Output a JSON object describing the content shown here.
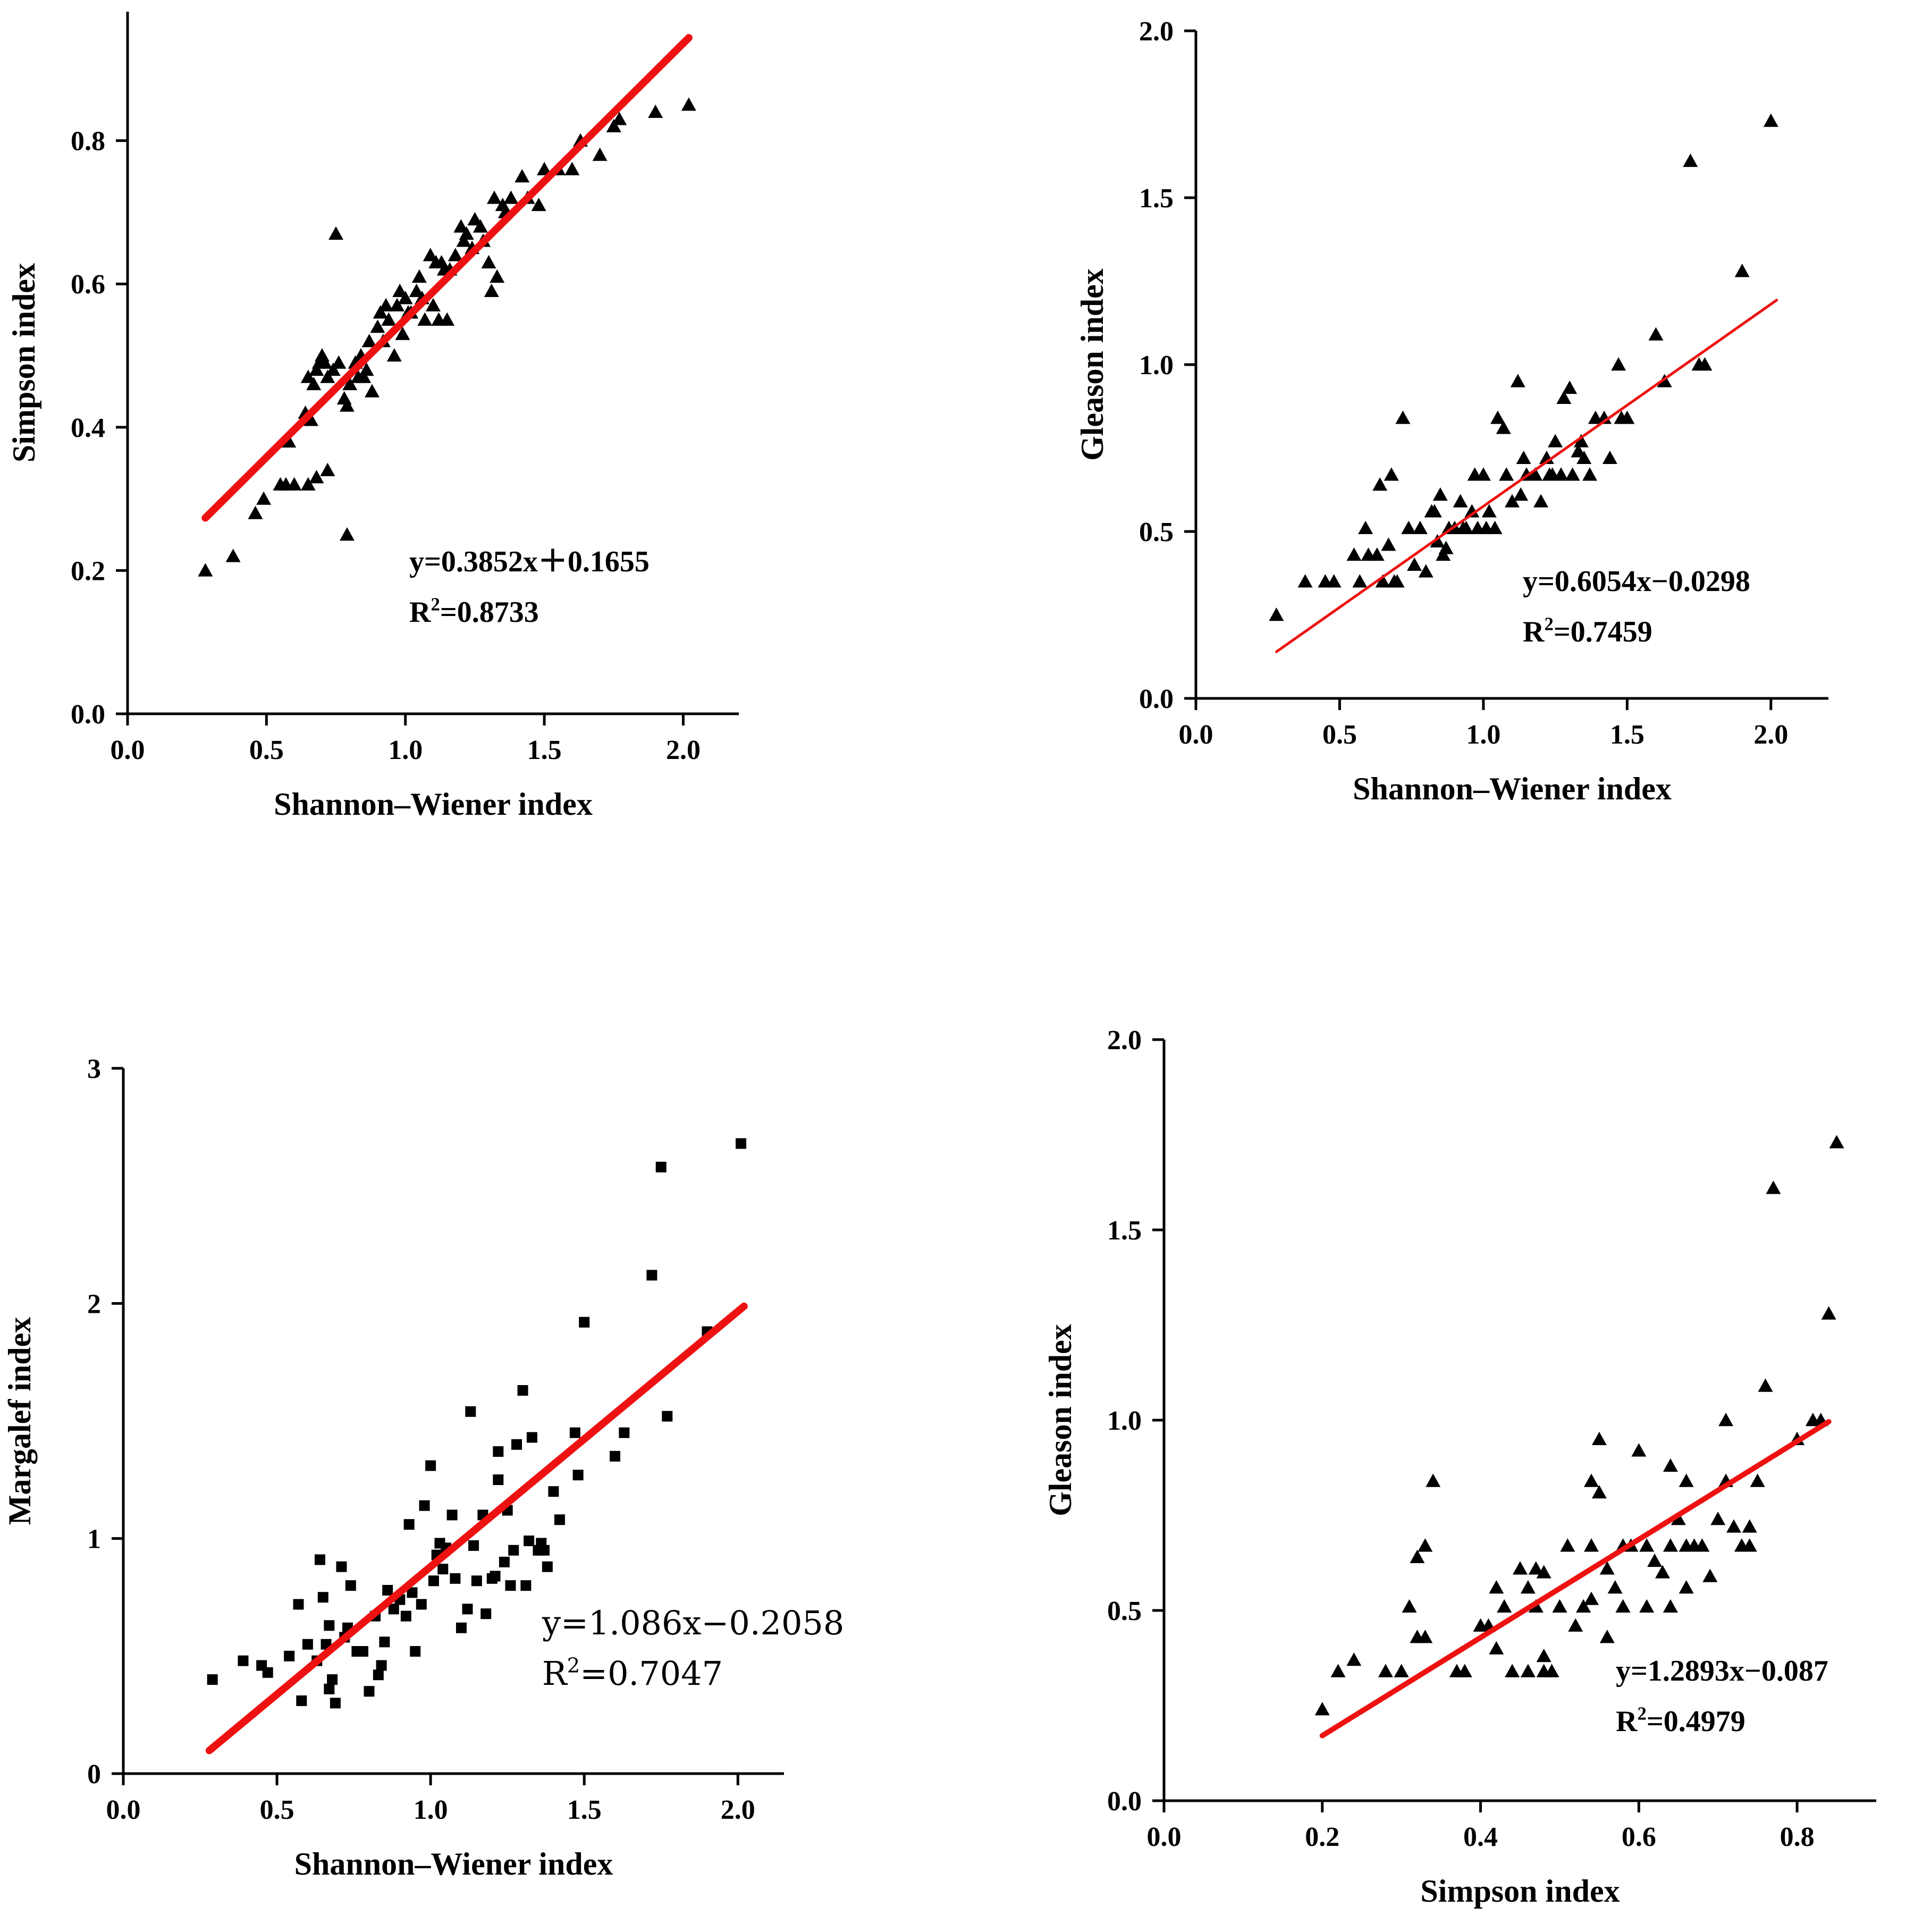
{
  "chart_data": [
    {
      "type": "scatter",
      "title": "",
      "xlabel": "Shannon–Wiener index",
      "ylabel": "Simpson index",
      "xlim": [
        0,
        2.2
      ],
      "ylim": [
        0,
        0.98
      ],
      "xticks": [
        "0.0",
        "0.5",
        "1.0",
        "1.5",
        "2.0"
      ],
      "yticks": [
        "0.0",
        "0.2",
        "0.4",
        "0.6",
        "0.8"
      ],
      "marker": "triangle",
      "fit": {
        "slope": 0.3852,
        "intercept": 0.1655,
        "x_range": [
          0.28,
          2.02
        ]
      },
      "equation": "y=0.3852x＋0.1655",
      "r2_label": "R",
      "r2_sup": "2",
      "r2_value": "=0.8733",
      "points": [
        [
          0.28,
          0.2
        ],
        [
          0.38,
          0.22
        ],
        [
          0.46,
          0.28
        ],
        [
          0.49,
          0.3
        ],
        [
          0.55,
          0.32
        ],
        [
          0.57,
          0.32
        ],
        [
          0.58,
          0.38
        ],
        [
          0.6,
          0.32
        ],
        [
          0.65,
          0.32
        ],
        [
          0.68,
          0.33
        ],
        [
          0.72,
          0.34
        ],
        [
          0.65,
          0.47
        ],
        [
          0.67,
          0.46
        ],
        [
          0.68,
          0.48
        ],
        [
          0.69,
          0.49
        ],
        [
          0.7,
          0.5
        ],
        [
          0.72,
          0.47
        ],
        [
          0.74,
          0.48
        ],
        [
          0.75,
          0.67
        ],
        [
          0.76,
          0.49
        ],
        [
          0.78,
          0.44
        ],
        [
          0.79,
          0.43
        ],
        [
          0.8,
          0.46
        ],
        [
          0.82,
          0.49
        ],
        [
          0.84,
          0.5
        ],
        [
          0.85,
          0.47
        ],
        [
          0.86,
          0.48
        ],
        [
          0.88,
          0.45
        ],
        [
          0.9,
          0.54
        ],
        [
          0.91,
          0.56
        ],
        [
          0.92,
          0.52
        ],
        [
          0.94,
          0.55
        ],
        [
          0.96,
          0.5
        ],
        [
          0.97,
          0.57
        ],
        [
          0.99,
          0.53
        ],
        [
          1.0,
          0.58
        ],
        [
          1.01,
          0.56
        ],
        [
          1.02,
          0.56
        ],
        [
          1.04,
          0.59
        ],
        [
          1.05,
          0.61
        ],
        [
          1.07,
          0.55
        ],
        [
          1.09,
          0.64
        ],
        [
          1.1,
          0.57
        ],
        [
          1.12,
          0.55
        ],
        [
          1.13,
          0.63
        ],
        [
          1.14,
          0.62
        ],
        [
          1.15,
          0.55
        ],
        [
          1.16,
          0.62
        ],
        [
          1.18,
          0.64
        ],
        [
          1.2,
          0.68
        ],
        [
          1.22,
          0.67
        ],
        [
          1.24,
          0.65
        ],
        [
          1.25,
          0.69
        ],
        [
          1.27,
          0.68
        ],
        [
          1.3,
          0.63
        ],
        [
          1.31,
          0.59
        ],
        [
          1.32,
          0.72
        ],
        [
          1.33,
          0.61
        ],
        [
          1.36,
          0.7
        ],
        [
          1.38,
          0.72
        ],
        [
          1.42,
          0.75
        ],
        [
          1.44,
          0.72
        ],
        [
          1.48,
          0.71
        ],
        [
          1.5,
          0.76
        ],
        [
          1.55,
          0.76
        ],
        [
          1.6,
          0.76
        ],
        [
          1.63,
          0.8
        ],
        [
          1.7,
          0.78
        ],
        [
          1.75,
          0.82
        ],
        [
          1.77,
          0.83
        ],
        [
          1.9,
          0.84
        ],
        [
          2.02,
          0.85
        ],
        [
          0.64,
          0.42
        ],
        [
          0.66,
          0.41
        ],
        [
          0.71,
          0.49
        ],
        [
          0.83,
          0.47
        ],
        [
          0.87,
          0.52
        ],
        [
          0.93,
          0.57
        ],
        [
          0.98,
          0.59
        ],
        [
          1.06,
          0.58
        ],
        [
          1.11,
          0.63
        ],
        [
          1.21,
          0.66
        ],
        [
          1.28,
          0.66
        ],
        [
          1.35,
          0.71
        ],
        [
          0.79,
          0.25
        ]
      ]
    },
    {
      "type": "scatter",
      "title": "",
      "xlabel": "Shannon–Wiener index",
      "ylabel": "Gleason index",
      "xlim": [
        0,
        2.2
      ],
      "ylim": [
        0,
        2.0
      ],
      "xticks": [
        "0.0",
        "0.5",
        "1.0",
        "1.5",
        "2.0"
      ],
      "yticks": [
        "0.0",
        "0.5",
        "1.0",
        "1.5",
        "2.0"
      ],
      "marker": "triangle",
      "fit": {
        "slope": 0.6054,
        "intercept": -0.0298,
        "x_range": [
          0.28,
          2.02
        ]
      },
      "equation": "y=0.6054x−0.0298",
      "r2_label": "R",
      "r2_sup": "2",
      "r2_value": "=0.7459",
      "points": [
        [
          0.28,
          0.25
        ],
        [
          0.38,
          0.35
        ],
        [
          0.45,
          0.35
        ],
        [
          0.48,
          0.35
        ],
        [
          0.55,
          0.43
        ],
        [
          0.57,
          0.35
        ],
        [
          0.59,
          0.51
        ],
        [
          0.63,
          0.43
        ],
        [
          0.64,
          0.64
        ],
        [
          0.65,
          0.35
        ],
        [
          0.67,
          0.46
        ],
        [
          0.68,
          0.67
        ],
        [
          0.7,
          0.35
        ],
        [
          0.72,
          0.84
        ],
        [
          0.74,
          0.51
        ],
        [
          0.76,
          0.4
        ],
        [
          0.78,
          0.51
        ],
        [
          0.8,
          0.38
        ],
        [
          0.82,
          0.56
        ],
        [
          0.84,
          0.47
        ],
        [
          0.85,
          0.61
        ],
        [
          0.86,
          0.43
        ],
        [
          0.88,
          0.51
        ],
        [
          0.9,
          0.51
        ],
        [
          0.92,
          0.59
        ],
        [
          0.94,
          0.51
        ],
        [
          0.96,
          0.56
        ],
        [
          0.97,
          0.67
        ],
        [
          0.98,
          0.51
        ],
        [
          1.0,
          0.67
        ],
        [
          1.01,
          0.51
        ],
        [
          1.02,
          0.56
        ],
        [
          1.04,
          0.51
        ],
        [
          1.05,
          0.84
        ],
        [
          1.07,
          0.81
        ],
        [
          1.08,
          0.67
        ],
        [
          1.1,
          0.59
        ],
        [
          1.12,
          0.95
        ],
        [
          1.13,
          0.61
        ],
        [
          1.15,
          0.67
        ],
        [
          1.18,
          0.67
        ],
        [
          1.2,
          0.59
        ],
        [
          1.22,
          0.72
        ],
        [
          1.24,
          0.67
        ],
        [
          1.25,
          0.77
        ],
        [
          1.27,
          0.67
        ],
        [
          1.28,
          0.9
        ],
        [
          1.3,
          0.93
        ],
        [
          1.31,
          0.67
        ],
        [
          1.33,
          0.74
        ],
        [
          1.35,
          0.72
        ],
        [
          1.37,
          0.67
        ],
        [
          1.39,
          0.84
        ],
        [
          1.42,
          0.84
        ],
        [
          1.44,
          0.72
        ],
        [
          1.47,
          1.0
        ],
        [
          1.5,
          0.84
        ],
        [
          1.6,
          1.09
        ],
        [
          1.63,
          0.95
        ],
        [
          1.72,
          1.61
        ],
        [
          1.75,
          1.0
        ],
        [
          1.77,
          1.0
        ],
        [
          1.9,
          1.28
        ],
        [
          2.0,
          1.73
        ],
        [
          0.6,
          0.43
        ],
        [
          0.83,
          0.56
        ],
        [
          0.93,
          0.51
        ],
        [
          1.14,
          0.72
        ],
        [
          1.23,
          0.67
        ],
        [
          1.34,
          0.77
        ],
        [
          1.48,
          0.84
        ],
        [
          0.69,
          0.35
        ],
        [
          0.87,
          0.45
        ]
      ]
    },
    {
      "type": "scatter",
      "title": "",
      "xlabel": "Shannon–Wiener index",
      "ylabel": "Margalef index",
      "xlim": [
        0,
        2.15
      ],
      "ylim": [
        0,
        3
      ],
      "xticks": [
        "0.0",
        "0.5",
        "1.0",
        "1.5",
        "2.0"
      ],
      "yticks": [
        "0",
        "1",
        "2",
        "3"
      ],
      "marker": "square",
      "fit": {
        "slope": 1.086,
        "intercept": -0.2058,
        "x_range": [
          0.28,
          2.02
        ]
      },
      "equation": "y=1.086x−0.2058",
      "r2_label": "R",
      "r2_sup": "2",
      "r2_value": "=0.7047",
      "points": [
        [
          0.29,
          0.4
        ],
        [
          0.39,
          0.48
        ],
        [
          0.45,
          0.46
        ],
        [
          0.47,
          0.43
        ],
        [
          0.54,
          0.5
        ],
        [
          0.57,
          0.72
        ],
        [
          0.58,
          0.31
        ],
        [
          0.6,
          0.55
        ],
        [
          0.63,
          0.48
        ],
        [
          0.64,
          0.91
        ],
        [
          0.65,
          0.75
        ],
        [
          0.67,
          0.63
        ],
        [
          0.67,
          0.36
        ],
        [
          0.68,
          0.4
        ],
        [
          0.69,
          0.3
        ],
        [
          0.71,
          0.88
        ],
        [
          0.73,
          0.62
        ],
        [
          0.74,
          0.8
        ],
        [
          0.76,
          0.52
        ],
        [
          0.78,
          0.52
        ],
        [
          0.8,
          0.35
        ],
        [
          0.82,
          0.67
        ],
        [
          0.84,
          0.46
        ],
        [
          0.85,
          0.56
        ],
        [
          0.86,
          0.78
        ],
        [
          0.88,
          0.7
        ],
        [
          0.9,
          0.74
        ],
        [
          0.92,
          0.67
        ],
        [
          0.93,
          1.06
        ],
        [
          0.95,
          0.52
        ],
        [
          0.97,
          0.72
        ],
        [
          0.98,
          1.14
        ],
        [
          1.0,
          1.31
        ],
        [
          1.01,
          0.82
        ],
        [
          1.02,
          0.93
        ],
        [
          1.04,
          0.87
        ],
        [
          1.05,
          0.96
        ],
        [
          1.07,
          1.1
        ],
        [
          1.08,
          0.83
        ],
        [
          1.1,
          0.62
        ],
        [
          1.12,
          0.7
        ],
        [
          1.13,
          1.54
        ],
        [
          1.15,
          0.82
        ],
        [
          1.17,
          1.1
        ],
        [
          1.18,
          0.68
        ],
        [
          1.2,
          0.83
        ],
        [
          1.22,
          1.37
        ],
        [
          1.22,
          1.25
        ],
        [
          1.24,
          0.9
        ],
        [
          1.25,
          1.12
        ],
        [
          1.26,
          0.8
        ],
        [
          1.28,
          1.4
        ],
        [
          1.3,
          1.63
        ],
        [
          1.31,
          0.8
        ],
        [
          1.32,
          0.99
        ],
        [
          1.33,
          1.43
        ],
        [
          1.35,
          0.95
        ],
        [
          1.37,
          0.95
        ],
        [
          1.38,
          0.88
        ],
        [
          1.4,
          1.2
        ],
        [
          1.42,
          1.08
        ],
        [
          1.47,
          1.45
        ],
        [
          1.48,
          1.27
        ],
        [
          1.5,
          1.92
        ],
        [
          1.6,
          1.35
        ],
        [
          1.63,
          1.45
        ],
        [
          1.72,
          2.12
        ],
        [
          1.75,
          2.58
        ],
        [
          1.77,
          1.52
        ],
        [
          1.9,
          1.88
        ],
        [
          2.01,
          2.68
        ],
        [
          0.66,
          0.55
        ],
        [
          0.72,
          0.58
        ],
        [
          0.83,
          0.42
        ],
        [
          0.94,
          0.77
        ],
        [
          1.03,
          0.98
        ],
        [
          1.14,
          0.97
        ],
        [
          1.21,
          0.84
        ],
        [
          1.27,
          0.95
        ],
        [
          1.36,
          0.98
        ]
      ]
    },
    {
      "type": "scatter",
      "title": "",
      "xlabel": "Simpson index",
      "ylabel": "Gleason index",
      "xlim": [
        0,
        0.9
      ],
      "ylim": [
        0,
        2.0
      ],
      "xticks": [
        "0.0",
        "0.2",
        "0.4",
        "0.6",
        "0.8"
      ],
      "yticks": [
        "0.0",
        "0.5",
        "1.0",
        "1.5",
        "2.0"
      ],
      "marker": "triangle",
      "fit": {
        "slope": 1.2893,
        "intercept": -0.087,
        "x_range": [
          0.2,
          0.84
        ]
      },
      "equation": "y=1.2893x−0.087",
      "r2_label": "R",
      "r2_sup": "2",
      "r2_value": "=0.4979",
      "points": [
        [
          0.2,
          0.24
        ],
        [
          0.22,
          0.34
        ],
        [
          0.24,
          0.37
        ],
        [
          0.28,
          0.34
        ],
        [
          0.3,
          0.34
        ],
        [
          0.31,
          0.51
        ],
        [
          0.32,
          0.43
        ],
        [
          0.32,
          0.64
        ],
        [
          0.33,
          0.43
        ],
        [
          0.33,
          0.67
        ],
        [
          0.34,
          0.84
        ],
        [
          0.37,
          0.34
        ],
        [
          0.38,
          0.34
        ],
        [
          0.4,
          0.46
        ],
        [
          0.41,
          0.46
        ],
        [
          0.42,
          0.4
        ],
        [
          0.42,
          0.56
        ],
        [
          0.43,
          0.51
        ],
        [
          0.44,
          0.34
        ],
        [
          0.45,
          0.61
        ],
        [
          0.46,
          0.56
        ],
        [
          0.46,
          0.34
        ],
        [
          0.47,
          0.51
        ],
        [
          0.47,
          0.61
        ],
        [
          0.48,
          0.6
        ],
        [
          0.48,
          0.38
        ],
        [
          0.49,
          0.34
        ],
        [
          0.5,
          0.51
        ],
        [
          0.51,
          0.67
        ],
        [
          0.52,
          0.46
        ],
        [
          0.53,
          0.51
        ],
        [
          0.54,
          0.84
        ],
        [
          0.54,
          0.53
        ],
        [
          0.55,
          0.81
        ],
        [
          0.55,
          0.95
        ],
        [
          0.56,
          0.61
        ],
        [
          0.56,
          0.43
        ],
        [
          0.57,
          0.56
        ],
        [
          0.58,
          0.67
        ],
        [
          0.58,
          0.51
        ],
        [
          0.59,
          0.67
        ],
        [
          0.6,
          0.92
        ],
        [
          0.61,
          0.51
        ],
        [
          0.62,
          0.63
        ],
        [
          0.63,
          0.6
        ],
        [
          0.64,
          0.88
        ],
        [
          0.64,
          0.67
        ],
        [
          0.65,
          0.74
        ],
        [
          0.66,
          0.56
        ],
        [
          0.66,
          0.84
        ],
        [
          0.67,
          0.67
        ],
        [
          0.68,
          0.67
        ],
        [
          0.69,
          0.59
        ],
        [
          0.7,
          0.74
        ],
        [
          0.71,
          1.0
        ],
        [
          0.72,
          0.72
        ],
        [
          0.73,
          0.67
        ],
        [
          0.74,
          0.67
        ],
        [
          0.75,
          0.84
        ],
        [
          0.76,
          1.09
        ],
        [
          0.77,
          1.61
        ],
        [
          0.8,
          0.95
        ],
        [
          0.82,
          1.0
        ],
        [
          0.83,
          1.0
        ],
        [
          0.84,
          1.28
        ],
        [
          0.85,
          1.73
        ],
        [
          0.5,
          0.51
        ],
        [
          0.53,
          0.51
        ],
        [
          0.47,
          0.51
        ],
        [
          0.61,
          0.67
        ],
        [
          0.66,
          0.67
        ],
        [
          0.54,
          0.67
        ],
        [
          0.48,
          0.34
        ],
        [
          0.58,
          0.51
        ],
        [
          0.64,
          0.51
        ],
        [
          0.71,
          0.84
        ],
        [
          0.74,
          0.72
        ]
      ]
    }
  ]
}
